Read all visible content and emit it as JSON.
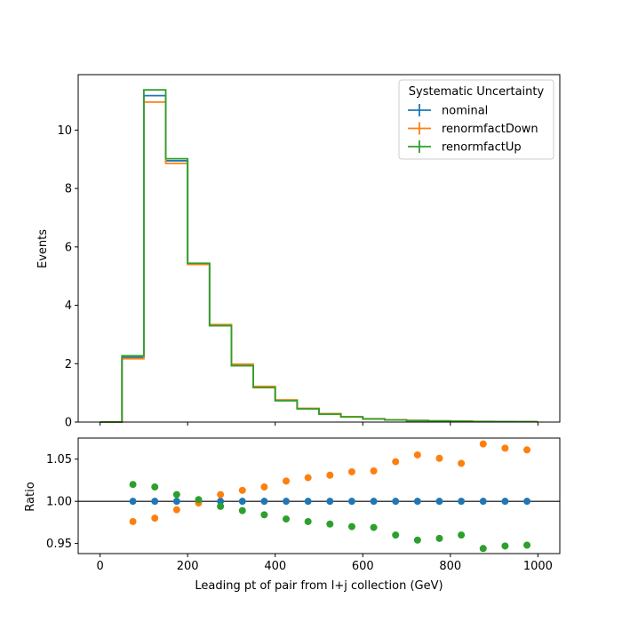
{
  "chart_data": [
    {
      "type": "line",
      "step": true,
      "xlabel": "",
      "ylabel": "Events",
      "xlim": [
        -50,
        1050
      ],
      "ylim": [
        0,
        11.9
      ],
      "x_ticks": [
        0,
        200,
        400,
        600,
        800,
        1000
      ],
      "y_ticks": [
        0,
        2,
        4,
        6,
        8,
        10
      ],
      "y_tick_labels": [
        "0",
        "2",
        "4",
        "6",
        "8",
        "10"
      ],
      "bin_edges": [
        0,
        50,
        100,
        150,
        200,
        250,
        300,
        350,
        400,
        450,
        500,
        550,
        600,
        650,
        700,
        750,
        800,
        850,
        900,
        950,
        1000
      ],
      "legend": {
        "title": "Systematic Uncertainty",
        "position": "top-right"
      },
      "series": [
        {
          "name": "nominal",
          "color": "#1f77b4",
          "values": [
            0,
            2.22,
            11.18,
            8.95,
            5.43,
            3.32,
            1.95,
            1.2,
            0.74,
            0.46,
            0.28,
            0.18,
            0.11,
            0.075,
            0.052,
            0.038,
            0.028,
            0.02,
            0.015,
            0.012
          ]
        },
        {
          "name": "renormfactDown",
          "color": "#ff7f0e",
          "values": [
            0,
            2.17,
            10.96,
            8.86,
            5.4,
            3.34,
            1.98,
            1.22,
            0.76,
            0.47,
            0.29,
            0.185,
            0.115,
            0.078,
            0.055,
            0.04,
            0.029,
            0.021,
            0.016,
            0.013
          ]
        },
        {
          "name": "renormfactUp",
          "color": "#2ca02c",
          "values": [
            0,
            2.27,
            11.38,
            9.02,
            5.44,
            3.3,
            1.93,
            1.18,
            0.73,
            0.45,
            0.27,
            0.175,
            0.107,
            0.072,
            0.05,
            0.036,
            0.027,
            0.019,
            0.014,
            0.011
          ]
        }
      ]
    },
    {
      "type": "scatter",
      "xlabel": "Leading pt of pair from l+j collection (GeV)",
      "ylabel": "Ratio",
      "xlim": [
        -50,
        1050
      ],
      "ylim": [
        0.938,
        1.075
      ],
      "x_ticks": [
        0,
        200,
        400,
        600,
        800,
        1000
      ],
      "x_tick_labels": [
        "0",
        "200",
        "400",
        "600",
        "800",
        "1000"
      ],
      "y_ticks": [
        0.95,
        1.0,
        1.05
      ],
      "y_tick_labels": [
        "0.95",
        "1.00",
        "1.05"
      ],
      "reference_line": 1.0,
      "x": [
        75,
        125,
        175,
        225,
        275,
        325,
        375,
        425,
        475,
        525,
        575,
        625,
        675,
        725,
        775,
        825,
        875,
        925,
        975
      ],
      "series": [
        {
          "name": "nominal",
          "color": "#1f77b4",
          "values": [
            1.0,
            1.0,
            1.0,
            1.0,
            1.0,
            1.0,
            1.0,
            1.0,
            1.0,
            1.0,
            1.0,
            1.0,
            1.0,
            1.0,
            1.0,
            1.0,
            1.0,
            1.0,
            1.0
          ]
        },
        {
          "name": "renormfactDown",
          "color": "#ff7f0e",
          "values": [
            0.976,
            0.98,
            0.99,
            0.998,
            1.008,
            1.013,
            1.017,
            1.024,
            1.028,
            1.031,
            1.035,
            1.036,
            1.047,
            1.055,
            1.051,
            1.045,
            1.068,
            1.063,
            1.061
          ]
        },
        {
          "name": "renormfactUp",
          "color": "#2ca02c",
          "values": [
            1.02,
            1.017,
            1.008,
            1.002,
            0.994,
            0.989,
            0.984,
            0.979,
            0.976,
            0.973,
            0.97,
            0.969,
            0.96,
            0.954,
            0.956,
            0.96,
            0.944,
            0.947,
            0.948
          ]
        }
      ]
    }
  ]
}
